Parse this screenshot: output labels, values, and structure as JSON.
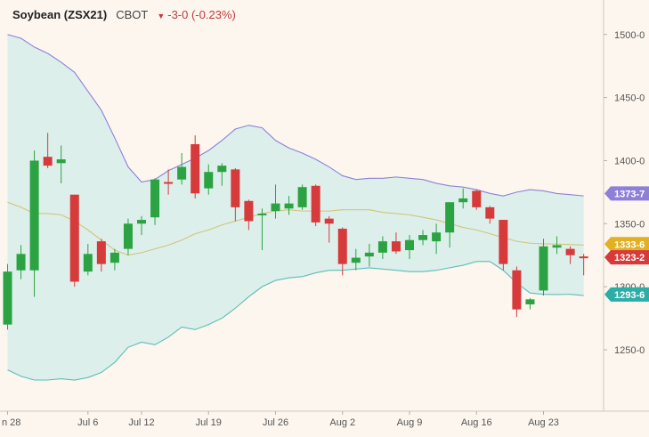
{
  "header": {
    "title": "Soybean (ZSX21)",
    "exchange": "CBOT",
    "change_icon": "triangle-down-icon",
    "change": "-3-0 (-0.23%)",
    "change_color": "#c23a3a"
  },
  "colors": {
    "up": "#2ca342",
    "down": "#d63a3a",
    "band_fill": "#dcefeb",
    "upper_band": "#8e80d8",
    "lower_band": "#5dbdb7",
    "middle_band": "#d2c47a"
  },
  "price_tags": [
    {
      "label": "1373-7",
      "value": 1373.9,
      "color": "#8e80d8"
    },
    {
      "label": "1333-6",
      "value": 1333.8,
      "color": "#e2b022"
    },
    {
      "label": "1323-2",
      "value": 1323.3,
      "color": "#d63a3a"
    },
    {
      "label": "1293-6",
      "value": 1293.8,
      "color": "#2aaea6"
    }
  ],
  "chart_data": {
    "type": "candlestick",
    "title": "Soybean (ZSX21)",
    "ylim": [
      1208,
      1520
    ],
    "y_ticks": [
      {
        "value": 1500,
        "label": "1500-0"
      },
      {
        "value": 1450,
        "label": "1450-0"
      },
      {
        "value": 1400,
        "label": "1400-0"
      },
      {
        "value": 1350,
        "label": "1350-0"
      },
      {
        "value": 1300,
        "label": "1300-0"
      },
      {
        "value": 1250,
        "label": "1250-0"
      }
    ],
    "x_ticks": [
      {
        "index": 0,
        "label": "n 28"
      },
      {
        "index": 6,
        "label": "Jul 6"
      },
      {
        "index": 10,
        "label": "Jul 12"
      },
      {
        "index": 15,
        "label": "Jul 19"
      },
      {
        "index": 20,
        "label": "Jul 26"
      },
      {
        "index": 25,
        "label": "Aug 2"
      },
      {
        "index": 30,
        "label": "Aug 9"
      },
      {
        "index": 35,
        "label": "Aug 16"
      },
      {
        "index": 40,
        "label": "Aug 23"
      }
    ],
    "candles": [
      {
        "date": "Jun 28",
        "open": 1270,
        "high": 1318,
        "low": 1266,
        "close": 1312
      },
      {
        "date": "Jun 29",
        "open": 1313,
        "high": 1333,
        "low": 1306,
        "close": 1326
      },
      {
        "date": "Jun 30",
        "open": 1313,
        "high": 1408,
        "low": 1292,
        "close": 1400
      },
      {
        "date": "Jul 1",
        "open": 1403,
        "high": 1422,
        "low": 1394,
        "close": 1396
      },
      {
        "date": "Jul 2",
        "open": 1398,
        "high": 1412,
        "low": 1382,
        "close": 1401
      },
      {
        "date": "Jul 6",
        "open": 1373,
        "high": 1373,
        "low": 1300,
        "close": 1304
      },
      {
        "date": "Jul 7",
        "open": 1312,
        "high": 1334,
        "low": 1309,
        "close": 1326
      },
      {
        "date": "Jul 8",
        "open": 1336,
        "high": 1338,
        "low": 1312,
        "close": 1318
      },
      {
        "date": "Jul 9",
        "open": 1319,
        "high": 1330,
        "low": 1313,
        "close": 1327
      },
      {
        "date": "Jul 12",
        "open": 1330,
        "high": 1354,
        "low": 1325,
        "close": 1350
      },
      {
        "date": "Jul 13",
        "open": 1350,
        "high": 1356,
        "low": 1341,
        "close": 1353
      },
      {
        "date": "Jul 14",
        "open": 1355,
        "high": 1386,
        "low": 1349,
        "close": 1385
      },
      {
        "date": "Jul 15",
        "open": 1383,
        "high": 1393,
        "low": 1373,
        "close": 1382
      },
      {
        "date": "Jul 16",
        "open": 1385,
        "high": 1406,
        "low": 1381,
        "close": 1395
      },
      {
        "date": "Jul 19",
        "open": 1413,
        "high": 1420,
        "low": 1370,
        "close": 1374
      },
      {
        "date": "Jul 20",
        "open": 1378,
        "high": 1397,
        "low": 1373,
        "close": 1391
      },
      {
        "date": "Jul 21",
        "open": 1391,
        "high": 1398,
        "low": 1380,
        "close": 1396
      },
      {
        "date": "Jul 22",
        "open": 1393,
        "high": 1394,
        "low": 1352,
        "close": 1363
      },
      {
        "date": "Jul 23",
        "open": 1368,
        "high": 1369,
        "low": 1345,
        "close": 1352
      },
      {
        "date": "Jul 26",
        "open": 1357,
        "high": 1362,
        "low": 1329,
        "close": 1358
      },
      {
        "date": "Jul 27",
        "open": 1360,
        "high": 1381,
        "low": 1354,
        "close": 1366
      },
      {
        "date": "Jul 28",
        "open": 1362,
        "high": 1372,
        "low": 1357,
        "close": 1366
      },
      {
        "date": "Jul 29",
        "open": 1363,
        "high": 1381,
        "low": 1361,
        "close": 1379
      },
      {
        "date": "Jul 30",
        "open": 1380,
        "high": 1381,
        "low": 1348,
        "close": 1351
      },
      {
        "date": "Aug 2",
        "open": 1354,
        "high": 1356,
        "low": 1335,
        "close": 1350
      },
      {
        "date": "Aug 3",
        "open": 1346,
        "high": 1347,
        "low": 1309,
        "close": 1318
      },
      {
        "date": "Aug 4",
        "open": 1319,
        "high": 1330,
        "low": 1313,
        "close": 1323
      },
      {
        "date": "Aug 5",
        "open": 1324,
        "high": 1334,
        "low": 1316,
        "close": 1327
      },
      {
        "date": "Aug 6",
        "open": 1327,
        "high": 1340,
        "low": 1322,
        "close": 1336
      },
      {
        "date": "Aug 9",
        "open": 1336,
        "high": 1343,
        "low": 1326,
        "close": 1328
      },
      {
        "date": "Aug 10",
        "open": 1329,
        "high": 1341,
        "low": 1322,
        "close": 1337
      },
      {
        "date": "Aug 11",
        "open": 1337,
        "high": 1345,
        "low": 1333,
        "close": 1341
      },
      {
        "date": "Aug 12",
        "open": 1336,
        "high": 1350,
        "low": 1326,
        "close": 1343
      },
      {
        "date": "Aug 13",
        "open": 1343,
        "high": 1367,
        "low": 1331,
        "close": 1367
      },
      {
        "date": "Aug 16",
        "open": 1367,
        "high": 1378,
        "low": 1362,
        "close": 1370
      },
      {
        "date": "Aug 17",
        "open": 1376,
        "high": 1377,
        "low": 1361,
        "close": 1363
      },
      {
        "date": "Aug 18",
        "open": 1363,
        "high": 1364,
        "low": 1350,
        "close": 1354
      },
      {
        "date": "Aug 19",
        "open": 1353,
        "high": 1353,
        "low": 1313,
        "close": 1318
      },
      {
        "date": "Aug 20",
        "open": 1313,
        "high": 1316,
        "low": 1276,
        "close": 1282
      },
      {
        "date": "Aug 23",
        "open": 1286,
        "high": 1291,
        "low": 1282,
        "close": 1290
      },
      {
        "date": "Aug 24",
        "open": 1297,
        "high": 1338,
        "low": 1293,
        "close": 1332
      },
      {
        "date": "Aug 25",
        "open": 1331,
        "high": 1340,
        "low": 1326,
        "close": 1333
      },
      {
        "date": "Aug 26",
        "open": 1330,
        "high": 1332,
        "low": 1318,
        "close": 1325
      },
      {
        "date": "Aug 27",
        "open": 1324,
        "high": 1326,
        "low": 1309,
        "close": 1323
      }
    ],
    "bollinger": {
      "upper": [
        1500,
        1497,
        1490,
        1485,
        1478,
        1470,
        1455,
        1440,
        1418,
        1395,
        1383,
        1385,
        1392,
        1397,
        1402,
        1408,
        1416,
        1425,
        1428,
        1426,
        1416,
        1410,
        1406,
        1401,
        1395,
        1388,
        1385,
        1386,
        1386,
        1387,
        1386,
        1385,
        1382,
        1380,
        1379,
        1377,
        1374,
        1372,
        1375,
        1377,
        1376,
        1373.9,
        1373,
        1372
      ],
      "middle": [
        1367,
        1363,
        1358,
        1358,
        1357,
        1352,
        1345,
        1337,
        1329,
        1325,
        1327,
        1330,
        1333,
        1337,
        1342,
        1345,
        1349,
        1352,
        1355,
        1358,
        1360,
        1361,
        1360,
        1360,
        1360,
        1361,
        1361,
        1361,
        1359,
        1358,
        1357,
        1355,
        1353,
        1350,
        1347,
        1345,
        1342,
        1339,
        1336,
        1334.5,
        1334,
        1333.8,
        1333.5,
        1333
      ],
      "lower": [
        1234,
        1229,
        1226,
        1226,
        1227,
        1226,
        1228,
        1232,
        1240,
        1252,
        1256,
        1254,
        1260,
        1268,
        1266,
        1270,
        1275,
        1283,
        1292,
        1300,
        1305,
        1307,
        1308,
        1311,
        1313,
        1313,
        1314,
        1315,
        1314,
        1313,
        1312,
        1312,
        1313,
        1315,
        1317,
        1320,
        1320,
        1313,
        1303,
        1295,
        1294,
        1293.8,
        1294,
        1293
      ]
    }
  }
}
